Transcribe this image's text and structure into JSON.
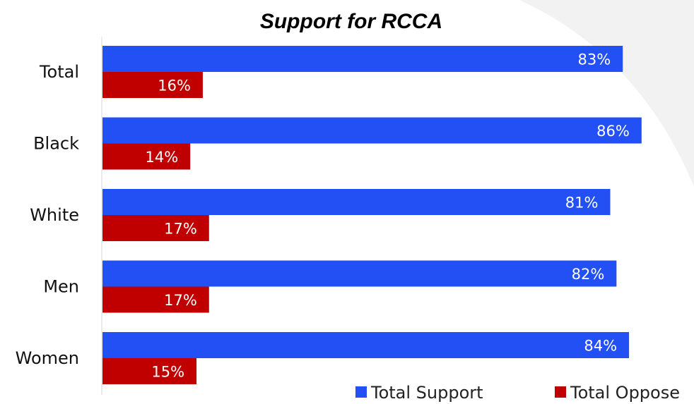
{
  "chart_data": {
    "type": "bar",
    "orientation": "horizontal",
    "title": "Support for RCCA",
    "categories": [
      "Total",
      "Black",
      "White",
      "Men",
      "Women"
    ],
    "series": [
      {
        "name": "Total Support",
        "values": [
          83,
          86,
          81,
          82,
          84
        ],
        "labels": [
          "83%",
          "86%",
          "81%",
          "82%",
          "84%"
        ],
        "color": "#2250f4"
      },
      {
        "name": "Total Oppose",
        "values": [
          16,
          14,
          17,
          17,
          15
        ],
        "labels": [
          "16%",
          "14%",
          "17%",
          "17%",
          "15%"
        ],
        "color": "#c00000"
      }
    ],
    "xlim": [
      0,
      100
    ],
    "grid": false,
    "legend_position": "bottom-right",
    "data_labels": "inside-end"
  },
  "colors": {
    "background": "#ffffff",
    "decorative_swoosh": "#f2f2f2",
    "axis_line": "#d9d9d9"
  }
}
